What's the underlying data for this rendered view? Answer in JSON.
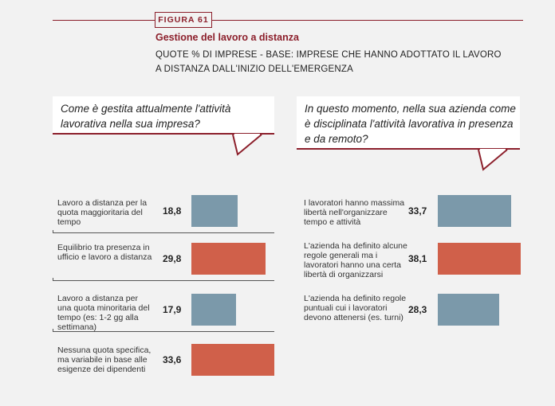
{
  "figure": {
    "badge": "FIGURA 61",
    "title": "Gestione del lavoro a distanza",
    "subtitle": "QUOTE % DI IMPRESE - BASE: IMPRESE CHE HANNO ADOTTATO IL LAVORO A DISTANZA DALL'INIZIO DELL'EMERGENZA"
  },
  "colors": {
    "accent": "#8c1f2b",
    "blue": "#7b99aa",
    "red": "#d0604a",
    "background": "#f2f2f2"
  },
  "chart_data": [
    {
      "type": "bar",
      "orientation": "horizontal",
      "title": "Come è gestita attualmente l'attività lavorativa nella sua impresa?",
      "categories": [
        "Lavoro a distanza per la quota maggioritaria del tempo",
        "Equilibrio tra presenza in ufficio e lavoro a distanza",
        "Lavoro a distanza per una quota minoritaria del tempo (es: 1-2 gg alla settimana)",
        "Nessuna quota specifica, ma variabile in base alle esigenze dei dipendenti"
      ],
      "values": [
        18.8,
        29.8,
        17.9,
        33.6
      ],
      "value_labels": [
        "18,8",
        "29,8",
        "17,9",
        "33,6"
      ],
      "bar_colors": [
        "#7b99aa",
        "#d0604a",
        "#7b99aa",
        "#d0604a"
      ]
    },
    {
      "type": "bar",
      "orientation": "horizontal",
      "title": "In questo momento, nella sua azienda come è disciplinata l'attività lavorativa in presenza e da remoto?",
      "categories": [
        "I lavoratori hanno massima libertà nell'organizzare tempo e attività",
        "L'azienda ha definito alcune regole generali ma i lavoratori hanno una certa libertà di organizzarsi",
        "L'azienda ha definito regole puntuali cui i lavoratori devono attenersi (es. turni)"
      ],
      "values": [
        33.7,
        38.1,
        28.3
      ],
      "value_labels": [
        "33,7",
        "38,1",
        "28,3"
      ],
      "bar_colors": [
        "#7b99aa",
        "#d0604a",
        "#7b99aa"
      ]
    }
  ]
}
